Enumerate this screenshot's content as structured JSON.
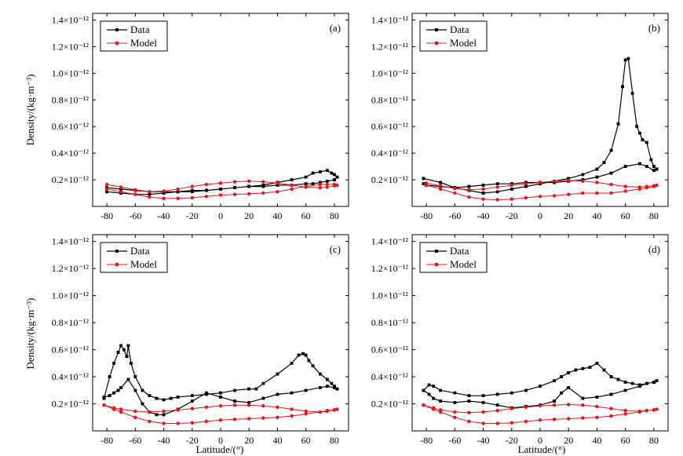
{
  "figure": {
    "ylabel": "Density/(kg·m⁻³)",
    "xlabel": "Latitude/(°)"
  },
  "legend": {
    "data_label": "Data",
    "model_label": "Model"
  },
  "colors": {
    "data": "#000000",
    "model": "#e8141b"
  },
  "chart_data": [
    {
      "type": "line",
      "panel": "(a)",
      "xlim": [
        -90,
        90
      ],
      "ylim": [
        0,
        1.45e-12
      ],
      "x_ticks": [
        -80,
        -60,
        -40,
        -20,
        0,
        20,
        40,
        60,
        80
      ],
      "x_tick_labels": [
        "-80",
        "-60",
        "-40",
        "-20",
        "0",
        "20",
        "40",
        "60",
        "80"
      ],
      "y_ticks": [
        2e-13,
        4e-13,
        6e-13,
        8e-13,
        1e-12,
        1.2e-12,
        1.4e-12
      ],
      "y_tick_labels": [
        "0.2×10⁻¹²",
        "0.4×10⁻¹²",
        "0.6×10⁻¹²",
        "0.8×10⁻¹²",
        "1.0×10⁻¹²",
        "1.2×10⁻¹²",
        "1.4×10⁻¹²"
      ],
      "unit": "kg·m⁻³",
      "series": [
        {
          "name": "Data",
          "x": [
            -80,
            -70,
            -60,
            -50,
            -40,
            -30,
            -20,
            -10,
            0,
            10,
            20,
            30,
            40,
            50,
            60,
            65,
            70,
            75,
            78,
            80,
            82,
            80,
            75,
            70,
            65,
            60,
            50,
            40,
            30,
            20,
            10,
            0,
            -10,
            -20,
            -30,
            -40,
            -50,
            -60,
            -70,
            -80
          ],
          "y": [
            1.1e-13,
            1e-13,
            9e-14,
            9e-14,
            1e-13,
            1.1e-13,
            1.1e-13,
            1.2e-13,
            1.3e-13,
            1.4e-13,
            1.5e-13,
            1.6e-13,
            1.8e-13,
            2e-13,
            2.2e-13,
            2.5e-13,
            2.6e-13,
            2.7e-13,
            2.5e-13,
            2.4e-13,
            2.2e-13,
            2e-13,
            1.9e-13,
            1.8e-13,
            1.7e-13,
            1.7e-13,
            1.6e-13,
            1.6e-13,
            1.5e-13,
            1.5e-13,
            1.4e-13,
            1.3e-13,
            1.2e-13,
            1.2e-13,
            1.1e-13,
            1.1e-13,
            1.1e-13,
            1.2e-13,
            1.3e-13,
            1.4e-13
          ]
        },
        {
          "name": "Model",
          "x": [
            -80,
            -70,
            -60,
            -50,
            -40,
            -30,
            -20,
            -10,
            0,
            10,
            20,
            30,
            40,
            50,
            60,
            70,
            75,
            80,
            82,
            80,
            75,
            70,
            60,
            50,
            40,
            30,
            20,
            10,
            0,
            -10,
            -20,
            -30,
            -40,
            -50,
            -60,
            -70,
            -80
          ],
          "y": [
            1.65e-13,
            1.45e-13,
            1.25e-13,
            1.1e-13,
            1.15e-13,
            1.3e-13,
            1.5e-13,
            1.65e-13,
            1.75e-13,
            1.85e-13,
            1.9e-13,
            1.85e-13,
            1.75e-13,
            1.6e-13,
            1.45e-13,
            1.4e-13,
            1.45e-13,
            1.55e-13,
            1.6e-13,
            1.65e-13,
            1.65e-13,
            1.65e-13,
            1.5e-13,
            1.3e-13,
            1.1e-13,
            1e-13,
            9.5e-14,
            9e-14,
            8.5e-14,
            7.5e-14,
            6.5e-14,
            6e-14,
            6e-14,
            7e-14,
            9e-14,
            1.1e-13,
            1.3e-13
          ]
        }
      ]
    },
    {
      "type": "line",
      "panel": "(b)",
      "xlim": [
        -90,
        90
      ],
      "ylim": [
        0,
        1.45e-12
      ],
      "x_ticks": [
        -80,
        -60,
        -40,
        -20,
        0,
        20,
        40,
        60,
        80
      ],
      "x_tick_labels": [
        "-80",
        "-60",
        "-40",
        "-20",
        "0",
        "20",
        "40",
        "60",
        "80"
      ],
      "y_ticks": [
        2e-13,
        4e-13,
        6e-13,
        8e-13,
        1e-12,
        1.2e-12,
        1.4e-12
      ],
      "y_tick_labels": [
        "0.2×10⁻¹²",
        "0.4×10⁻¹²",
        "0.6×10⁻¹²",
        "0.8×10⁻¹²",
        "1.0×10⁻¹²",
        "1.2×10⁻¹²",
        "1.4×10⁻¹²"
      ],
      "unit": "kg·m⁻³",
      "series": [
        {
          "name": "Data",
          "x": [
            -82,
            -70,
            -60,
            -50,
            -40,
            -30,
            -20,
            -10,
            0,
            10,
            20,
            30,
            40,
            45,
            50,
            55,
            58,
            60,
            62,
            65,
            68,
            70,
            72,
            75,
            78,
            80,
            82,
            80,
            75,
            70,
            60,
            50,
            40,
            30,
            20,
            10,
            0,
            -10,
            -20,
            -30,
            -40,
            -50,
            -60,
            -70,
            -80,
            -82
          ],
          "y": [
            2.1e-13,
            1.8e-13,
            1.4e-13,
            1.2e-13,
            1e-13,
            1.1e-13,
            1.3e-13,
            1.5e-13,
            1.7e-13,
            1.9e-13,
            2.1e-13,
            2.4e-13,
            2.8e-13,
            3.3e-13,
            4.2e-13,
            6.2e-13,
            9e-13,
            1.1e-12,
            1.11e-12,
            8.5e-13,
            6e-13,
            5.5e-13,
            5e-13,
            4.8e-13,
            3.5e-13,
            3e-13,
            2.8e-13,
            2.7e-13,
            3e-13,
            3.2e-13,
            3e-13,
            2.5e-13,
            2.2e-13,
            2e-13,
            1.9e-13,
            1.8e-13,
            1.8e-13,
            1.8e-13,
            1.7e-13,
            1.7e-13,
            1.6e-13,
            1.5e-13,
            1.4e-13,
            1.5e-13,
            1.6e-13,
            1.7e-13
          ]
        },
        {
          "name": "Model",
          "x": [
            -80,
            -70,
            -60,
            -50,
            -40,
            -30,
            -20,
            -10,
            0,
            10,
            20,
            30,
            40,
            50,
            60,
            70,
            75,
            80,
            82,
            80,
            75,
            70,
            60,
            50,
            40,
            30,
            20,
            10,
            0,
            -10,
            -20,
            -30,
            -40,
            -50,
            -60,
            -70,
            -80
          ],
          "y": [
            1.75e-13,
            1.55e-13,
            1.35e-13,
            1.25e-13,
            1.3e-13,
            1.45e-13,
            1.6e-13,
            1.7e-13,
            1.8e-13,
            1.9e-13,
            1.95e-13,
            1.9e-13,
            1.8e-13,
            1.65e-13,
            1.5e-13,
            1.45e-13,
            1.5e-13,
            1.55e-13,
            1.6e-13,
            1.5e-13,
            1.4e-13,
            1.3e-13,
            1.15e-13,
            1e-13,
            1e-13,
            1e-13,
            9e-14,
            8e-14,
            7.5e-14,
            6.5e-14,
            5.5e-14,
            5e-14,
            5.5e-14,
            7e-14,
            1e-13,
            1.3e-13,
            1.6e-13
          ]
        }
      ]
    },
    {
      "type": "line",
      "panel": "(c)",
      "xlim": [
        -90,
        90
      ],
      "ylim": [
        0,
        1.45e-12
      ],
      "x_ticks": [
        -80,
        -60,
        -40,
        -20,
        0,
        20,
        40,
        60,
        80
      ],
      "x_tick_labels": [
        "-80",
        "-60",
        "-40",
        "-20",
        "0",
        "20",
        "40",
        "60",
        "80"
      ],
      "y_ticks": [
        2e-13,
        4e-13,
        6e-13,
        8e-13,
        1e-12,
        1.2e-12,
        1.4e-12
      ],
      "y_tick_labels": [
        "0.2×10⁻¹²",
        "0.4×10⁻¹²",
        "0.6×10⁻¹²",
        "0.8×10⁻¹²",
        "1.0×10⁻¹²",
        "1.2×10⁻¹²",
        "1.4×10⁻¹²"
      ],
      "unit": "kg·m⁻³",
      "series": [
        {
          "name": "Data",
          "x": [
            -82,
            -78,
            -75,
            -72,
            -70,
            -68,
            -66,
            -65,
            -63,
            -60,
            -55,
            -50,
            -45,
            -40,
            -35,
            -30,
            -20,
            -10,
            0,
            10,
            20,
            25,
            30,
            40,
            50,
            55,
            58,
            60,
            62,
            65,
            70,
            75,
            78,
            80,
            82,
            80,
            75,
            70,
            60,
            50,
            40,
            30,
            20,
            10,
            0,
            -10,
            -20,
            -30,
            -40,
            -45,
            -50,
            -55,
            -60,
            -65,
            -70,
            -72,
            -75,
            -78,
            -82
          ],
          "y": [
            2.4e-13,
            4e-13,
            5e-13,
            5.8e-13,
            6.3e-13,
            6e-13,
            5.5e-13,
            6.3e-13,
            5e-13,
            4e-13,
            3e-13,
            2.6e-13,
            2.4e-13,
            2.3e-13,
            2.4e-13,
            2.5e-13,
            2.6e-13,
            2.7e-13,
            2.8e-13,
            3e-13,
            3.1e-13,
            3.1e-13,
            3.5e-13,
            4.2e-13,
            5e-13,
            5.6e-13,
            5.7e-13,
            5.6e-13,
            5.2e-13,
            4.8e-13,
            4.2e-13,
            3.8e-13,
            3.5e-13,
            3.3e-13,
            3.1e-13,
            3.2e-13,
            3.3e-13,
            3.2e-13,
            3e-13,
            2.8e-13,
            2.7e-13,
            2.4e-13,
            2.1e-13,
            2.2e-13,
            2.5e-13,
            2.8e-13,
            2.2e-13,
            1.6e-13,
            1.2e-13,
            1.2e-13,
            1.4e-13,
            2e-13,
            3e-13,
            3.8e-13,
            3.2e-13,
            3e-13,
            2.8e-13,
            2.6e-13,
            2.5e-13
          ]
        },
        {
          "name": "Model",
          "x": [
            -82,
            -75,
            -70,
            -60,
            -50,
            -40,
            -30,
            -20,
            -10,
            0,
            10,
            20,
            30,
            40,
            50,
            60,
            70,
            75,
            80,
            82,
            80,
            75,
            70,
            60,
            50,
            40,
            30,
            20,
            10,
            0,
            -10,
            -20,
            -30,
            -40,
            -50,
            -60,
            -70,
            -75,
            -82
          ],
          "y": [
            1.9e-13,
            1.7e-13,
            1.6e-13,
            1.45e-13,
            1.4e-13,
            1.45e-13,
            1.55e-13,
            1.65e-13,
            1.75e-13,
            1.85e-13,
            1.9e-13,
            1.9e-13,
            1.85e-13,
            1.75e-13,
            1.6e-13,
            1.45e-13,
            1.4e-13,
            1.45e-13,
            1.55e-13,
            1.6e-13,
            1.55e-13,
            1.5e-13,
            1.4e-13,
            1.25e-13,
            1.1e-13,
            1e-13,
            9.5e-14,
            9e-14,
            8.5e-14,
            8e-14,
            7e-14,
            6e-14,
            5.5e-14,
            5.5e-14,
            7e-14,
            1e-13,
            1.4e-13,
            1.6e-13,
            1.9e-13
          ]
        }
      ]
    },
    {
      "type": "line",
      "panel": "(d)",
      "xlim": [
        -90,
        90
      ],
      "ylim": [
        0,
        1.45e-12
      ],
      "x_ticks": [
        -80,
        -60,
        -40,
        -20,
        0,
        20,
        40,
        60,
        80
      ],
      "x_tick_labels": [
        "-80",
        "-60",
        "-40",
        "-20",
        "0",
        "20",
        "40",
        "60",
        "80"
      ],
      "y_ticks": [
        2e-13,
        4e-13,
        6e-13,
        8e-13,
        1e-12,
        1.2e-12,
        1.4e-12
      ],
      "y_tick_labels": [
        "0.2×10⁻¹²",
        "0.4×10⁻¹²",
        "0.6×10⁻¹²",
        "0.8×10⁻¹²",
        "1.0×10⁻¹²",
        "1.2×10⁻¹²",
        "1.4×10⁻¹²"
      ],
      "unit": "kg·m⁻³",
      "series": [
        {
          "name": "Data",
          "x": [
            -82,
            -78,
            -75,
            -70,
            -60,
            -50,
            -40,
            -30,
            -20,
            -10,
            0,
            10,
            15,
            20,
            25,
            30,
            35,
            40,
            45,
            50,
            55,
            60,
            65,
            70,
            75,
            80,
            82,
            80,
            75,
            70,
            60,
            50,
            40,
            30,
            20,
            15,
            10,
            0,
            -10,
            -20,
            -30,
            -40,
            -50,
            -60,
            -70,
            -75,
            -78,
            -82
          ],
          "y": [
            3e-13,
            3.4e-13,
            3.3e-13,
            3e-13,
            2.8e-13,
            2.6e-13,
            2.6e-13,
            2.7e-13,
            2.8e-13,
            3e-13,
            3.3e-13,
            3.7e-13,
            4e-13,
            4.3e-13,
            4.5e-13,
            4.6e-13,
            4.7e-13,
            5e-13,
            4.5e-13,
            4e-13,
            3.8e-13,
            3.6e-13,
            3.5e-13,
            3.4e-13,
            3.5e-13,
            3.6e-13,
            3.7e-13,
            3.6e-13,
            3.5e-13,
            3.3e-13,
            3e-13,
            2.7e-13,
            2.5e-13,
            2.4e-13,
            3.2e-13,
            2.8e-13,
            2.2e-13,
            1.9e-13,
            1.8e-13,
            1.7e-13,
            1.9e-13,
            2.1e-13,
            2.2e-13,
            2.1e-13,
            2.2e-13,
            2.4e-13,
            2.7e-13,
            3e-13
          ]
        },
        {
          "name": "Model",
          "x": [
            -82,
            -75,
            -70,
            -60,
            -50,
            -40,
            -30,
            -20,
            -10,
            0,
            10,
            20,
            30,
            40,
            50,
            60,
            70,
            75,
            80,
            82,
            80,
            75,
            70,
            60,
            50,
            40,
            30,
            20,
            10,
            0,
            -10,
            -20,
            -30,
            -40,
            -50,
            -60,
            -70,
            -75,
            -82
          ],
          "y": [
            1.9e-13,
            1.7e-13,
            1.55e-13,
            1.4e-13,
            1.35e-13,
            1.4e-13,
            1.5e-13,
            1.65e-13,
            1.75e-13,
            1.85e-13,
            1.9e-13,
            1.95e-13,
            1.9e-13,
            1.8e-13,
            1.65e-13,
            1.5e-13,
            1.45e-13,
            1.5e-13,
            1.55e-13,
            1.6e-13,
            1.55e-13,
            1.5e-13,
            1.4e-13,
            1.25e-13,
            1.1e-13,
            1e-13,
            9.5e-14,
            9e-14,
            8.5e-14,
            8e-14,
            7e-14,
            6e-14,
            5.5e-14,
            5.5e-14,
            7e-14,
            1e-13,
            1.4e-13,
            1.6e-13,
            1.9e-13
          ]
        }
      ]
    }
  ]
}
